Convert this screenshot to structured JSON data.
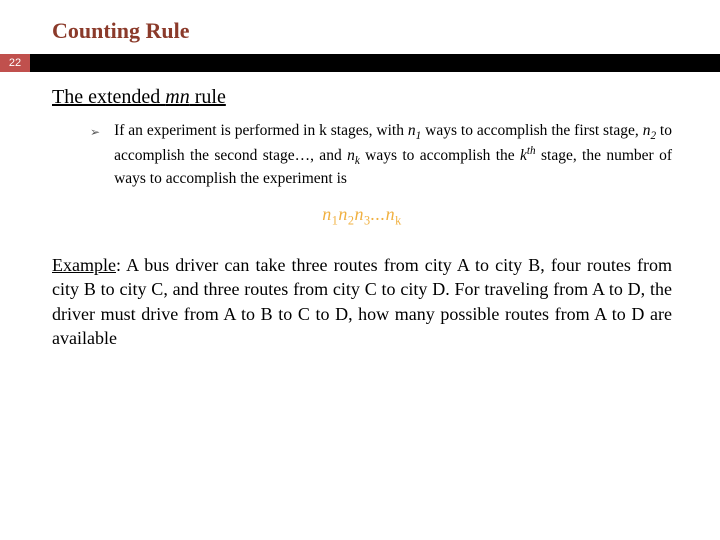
{
  "title": "Counting Rule",
  "pagenum": "22",
  "subtitle_prefix": "The extended ",
  "subtitle_italic": "mn",
  "subtitle_suffix": " rule",
  "bullet_marker": "➢",
  "bullet_html": "If an experiment is performed in k stages, with <span class=\"ital\">n<span class=\"sub\">1</span></span> ways to accomplish the first stage, <span class=\"ital\">n<span class=\"sub\">2</span></span> to accomplish the second stage…, and <span class=\"ital\">n<span class=\"sub\">k</span></span> ways to accomplish the <span class=\"ital\">k<span class=\"sup\">th</span></span> stage, the number of ways to accomplish the experiment is",
  "formula_html": "n<span class=\"fsub\">1</span>n<span class=\"fsub\">2</span>n<span class=\"fsub\">3</span>...n<span class=\"fsub\">k</span>",
  "example_html": "<span class=\"ul\">Example</span>: A bus driver can take three routes from city A to city B, four routes from city B to city C, and three routes from city C to city D. For traveling from A to D, the driver must drive from A to B to C to D, how many possible routes from A to D are available",
  "colors": {
    "title": "#8b3a2a",
    "pagenum_bg": "#c0504d",
    "bar": "#000000",
    "formula": "#f0b040",
    "background": "#ffffff"
  }
}
